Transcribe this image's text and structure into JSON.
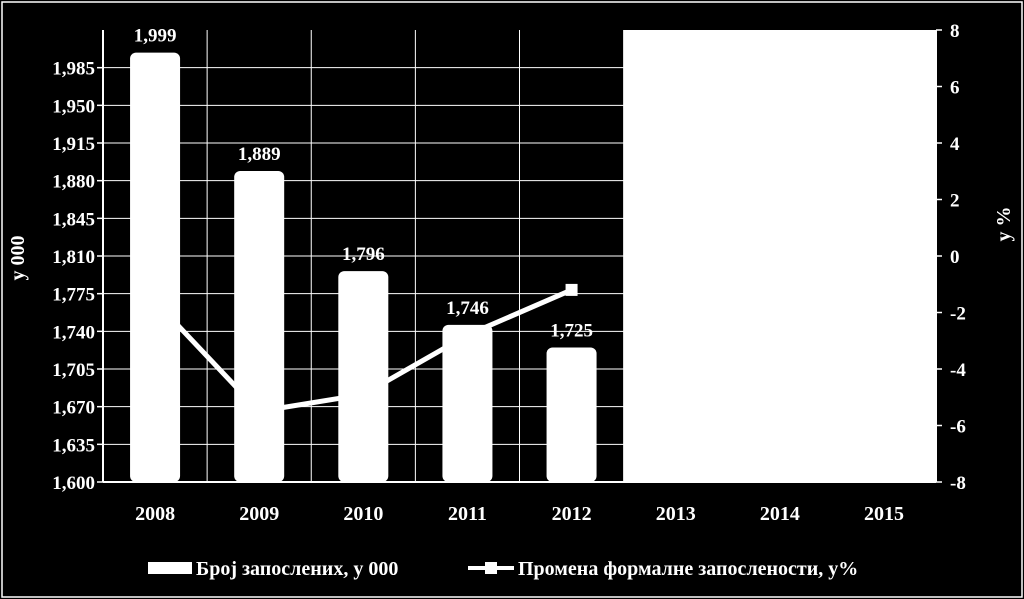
{
  "chart_data": {
    "type": "bar",
    "categories": [
      "2008",
      "2009",
      "2010",
      "2011",
      "2012",
      "2013",
      "2014",
      "2015"
    ],
    "series": [
      {
        "name": "Број запослених, у 000",
        "kind": "bar",
        "axis": "left",
        "values": [
          1999,
          1889,
          1796,
          1746,
          1725,
          null,
          null,
          null
        ],
        "labels": [
          "1,999",
          "1,889",
          "1,796",
          "1,746",
          "1,725",
          "",
          "",
          ""
        ]
      },
      {
        "name": "Промена формалне запослености, у%",
        "kind": "line",
        "axis": "right",
        "values": [
          -1.6,
          -5.5,
          -4.9,
          -2.8,
          -1.2,
          null,
          null,
          null
        ]
      }
    ],
    "ylabel": "у 000",
    "y2label": "у %",
    "ylim": [
      1600,
      2020
    ],
    "y2lim": [
      -8,
      8
    ],
    "yticks": [
      "1,600",
      "1,635",
      "1,670",
      "1,705",
      "1,740",
      "1,775",
      "1,810",
      "1,845",
      "1,880",
      "1,915",
      "1,950",
      "1,985"
    ],
    "y2ticks": [
      "-8",
      "-6",
      "-4",
      "-2",
      "0",
      "2",
      "4",
      "6",
      "8"
    ],
    "grid": true,
    "legend_position": "bottom",
    "forecast_from_category": "2013",
    "colors": {
      "background": "#000000",
      "bars": "#ffffff",
      "line": "#ffffff",
      "grid": "#ffffff",
      "forecast_area": "#ffffff"
    }
  }
}
